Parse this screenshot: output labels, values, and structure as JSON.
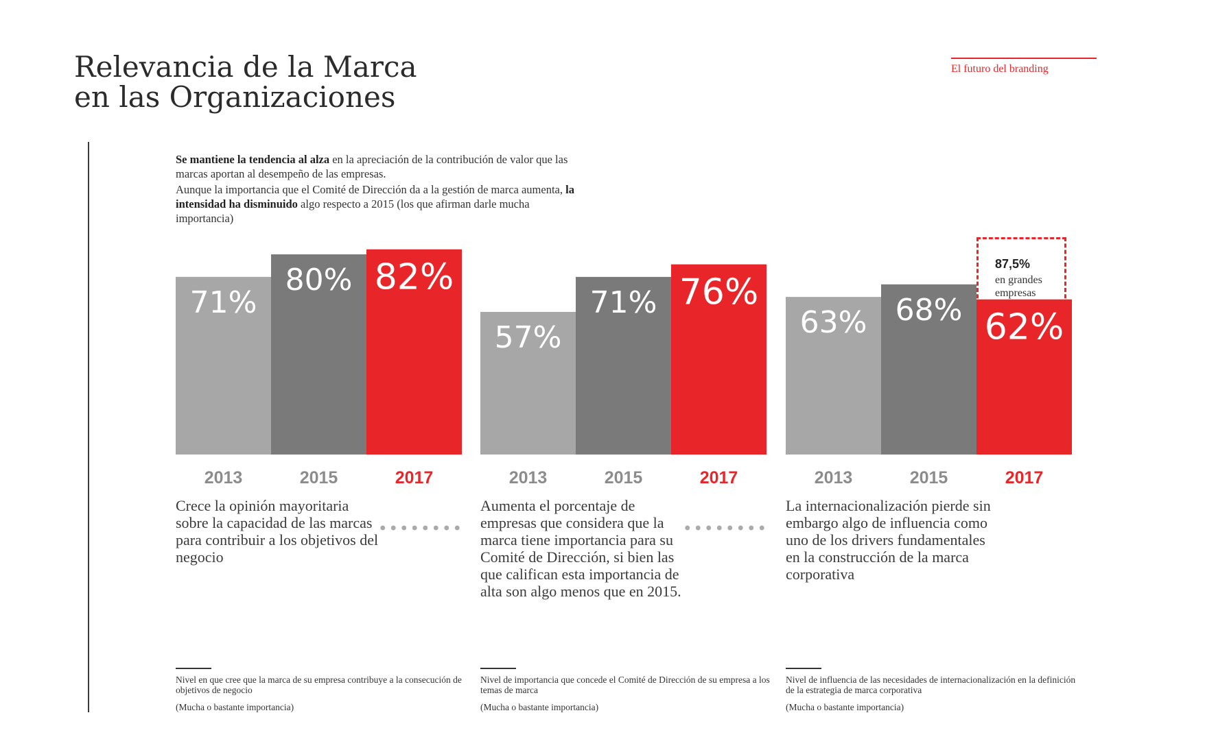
{
  "header": {
    "title_line1": "Relevancia de la Marca",
    "title_line2": "en las Organizaciones",
    "section_tag": "El futuro del branding"
  },
  "intro": {
    "p1_bold": "Se mantiene la tendencia al alza",
    "p1_rest": " en la apreciación de la contribución de valor que las marcas aportan al desempeño de las empresas.",
    "p2_start": "Aunque la importancia que el Comité de Dirección da a la gestión de marca aumenta, ",
    "p2_bold": "la intensidad ha disminuido",
    "p2_rest": " algo respecto a 2015 (los que afirman darle mucha importancia)"
  },
  "colors": {
    "light": "#a7a7a7",
    "mid": "#7b7a7b",
    "accent": "#e8262a",
    "year_gray": "#8c8c8c"
  },
  "chart_data": [
    {
      "type": "bar",
      "categories": [
        "2013",
        "2015",
        "2017"
      ],
      "values": [
        71,
        80,
        82
      ],
      "value_labels": [
        "71%",
        "80%",
        "82%"
      ],
      "ylim": [
        0,
        100
      ],
      "description": "Crece la opinión mayoritaria sobre la capacidad de las marcas para contribuir a los objetivos del negocio",
      "footnote": "Nivel en que cree que la marca de su empresa contribuye a la consecución de objetivos de negocio",
      "note": "(Mucha o bastante importancia)"
    },
    {
      "type": "bar",
      "categories": [
        "2013",
        "2015",
        "2017"
      ],
      "values": [
        57,
        71,
        76
      ],
      "value_labels": [
        "57%",
        "71%",
        "76%"
      ],
      "ylim": [
        0,
        100
      ],
      "description": "Aumenta el porcentaje de empresas que considera que la marca tiene importancia para su Comité de Dirección, si bien las que califican esta importancia de alta son algo menos que en 2015.",
      "footnote": "Nivel de importancia que concede el Comité de Dirección de su empresa a los temas de marca",
      "note": "(Mucha o bastante importancia)"
    },
    {
      "type": "bar",
      "categories": [
        "2013",
        "2015",
        "2017"
      ],
      "values": [
        63,
        68,
        62
      ],
      "value_labels": [
        "63%",
        "68%",
        "62%"
      ],
      "ylim": [
        0,
        100
      ],
      "description": "La internacionalización pierde sin embargo algo de influencia como uno de los drivers fundamentales en la construcción de la marca corporativa",
      "footnote": "Nivel de influencia de las necesidades de internacionalización en la definición de la estrategia de marca corporativa",
      "note": "(Mucha o bastante importancia)",
      "annotation": {
        "value": "87,5%",
        "label": "en grandes empresas",
        "year": "2017"
      }
    }
  ]
}
